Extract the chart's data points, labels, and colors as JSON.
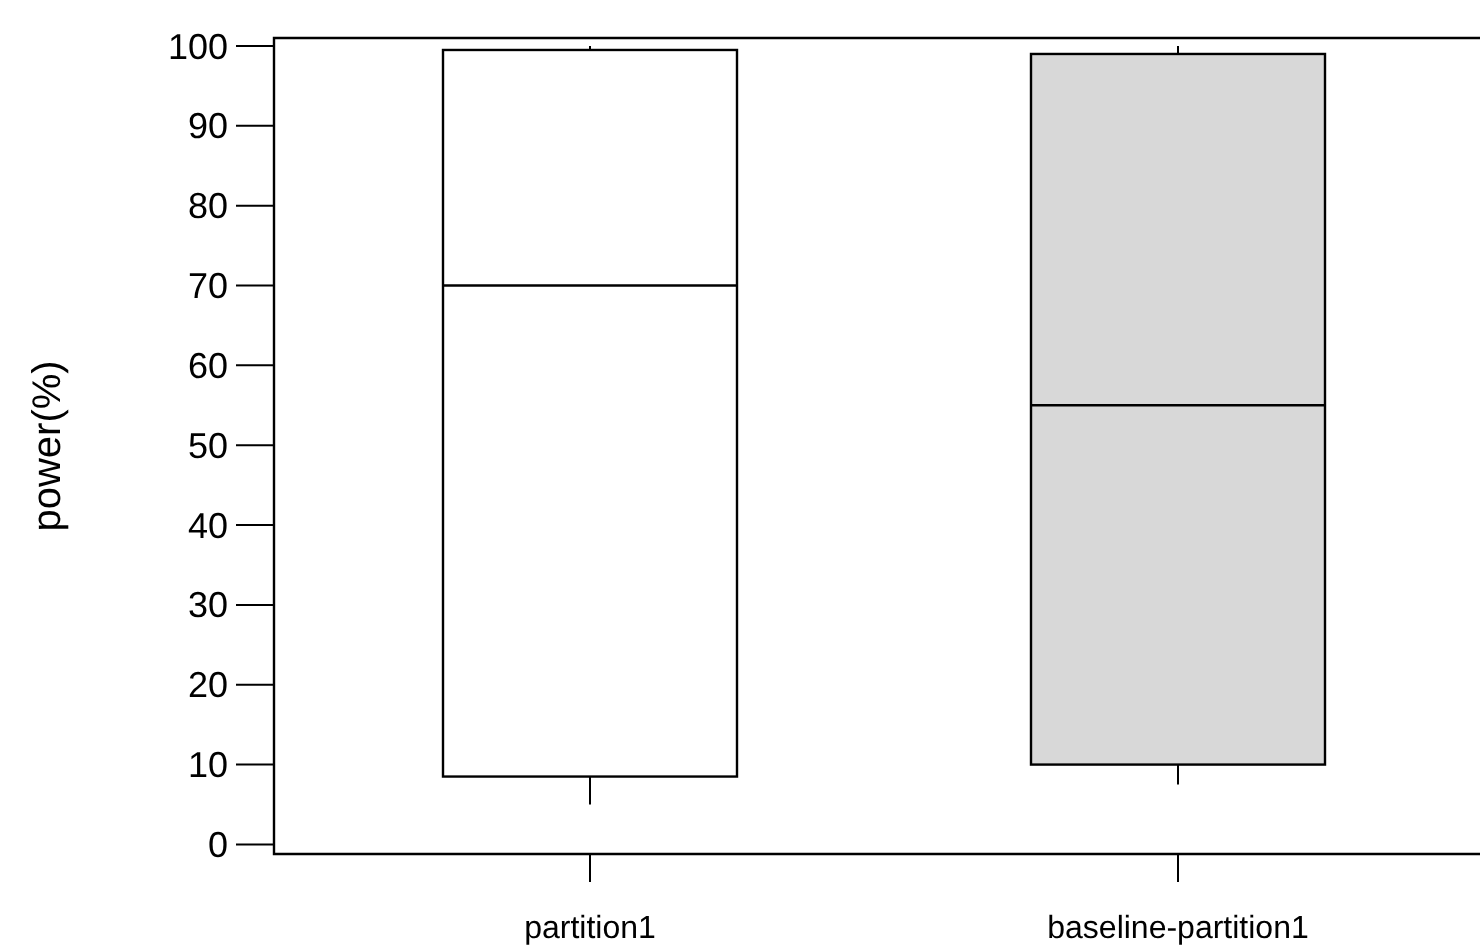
{
  "chart_data": {
    "type": "box",
    "ylabel": "power(%)",
    "categories": [
      "partition1",
      "baseline-partition1"
    ],
    "boxes": [
      {
        "low": 5,
        "q1": 8.5,
        "median": 70,
        "q3": 99.5,
        "high": 100
      },
      {
        "low": 7.5,
        "q1": 10,
        "median": 55,
        "q3": 99,
        "high": 100
      }
    ],
    "colors": [
      "#ffffff",
      "#d8d8d8"
    ],
    "ylim": [
      -1.2,
      101
    ],
    "yticks": [
      0,
      10,
      20,
      30,
      40,
      50,
      60,
      70,
      80,
      90,
      100
    ],
    "grid": false
  }
}
